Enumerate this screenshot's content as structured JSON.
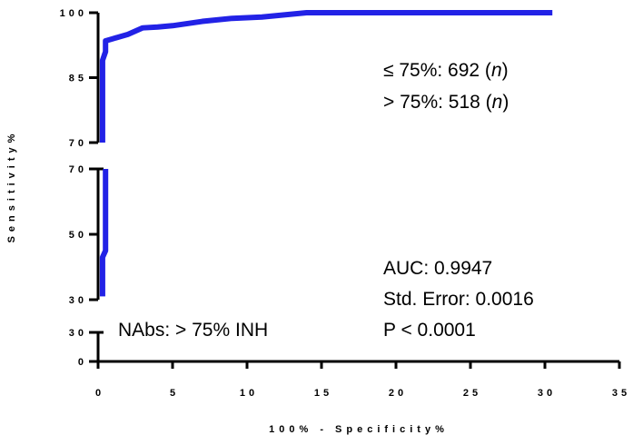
{
  "chart_data": {
    "type": "line",
    "color": "#2222e6",
    "xlabel": "100% - Specificity%",
    "ylabel": "Sensitivity%",
    "xlim": [
      0,
      35
    ],
    "xticks": [
      0,
      5,
      10,
      15,
      20,
      25,
      30,
      35
    ],
    "panels": [
      {
        "ylim": [
          70,
          100
        ],
        "yticks": [
          70,
          85,
          100
        ],
        "x": [
          0.3,
          0.3,
          0.5,
          0.5,
          1,
          2,
          3,
          4,
          5,
          7,
          9,
          11,
          14,
          30.5
        ],
        "values": [
          70,
          89,
          91,
          93.5,
          94,
          95,
          96.5,
          96.7,
          97,
          98,
          98.7,
          99,
          100,
          100
        ]
      },
      {
        "ylim": [
          30,
          70
        ],
        "yticks": [
          30,
          50,
          70
        ],
        "x": [
          0.3,
          0.3,
          0.5,
          0.5
        ],
        "values": [
          31,
          43,
          45,
          70
        ]
      },
      {
        "ylim": [
          0,
          30
        ],
        "yticks": [
          0,
          30
        ]
      }
    ],
    "annotations": [
      [
        "≤ 75%: 692 (",
        "n",
        ")"
      ],
      [
        "> 75%: 518 (",
        "n",
        ")"
      ],
      [
        "AUC: 0.9947"
      ],
      [
        "Std. Error: 0.0016"
      ],
      [
        "P < 0.0001"
      ],
      [
        "NAbs: > 75% INH"
      ]
    ]
  }
}
